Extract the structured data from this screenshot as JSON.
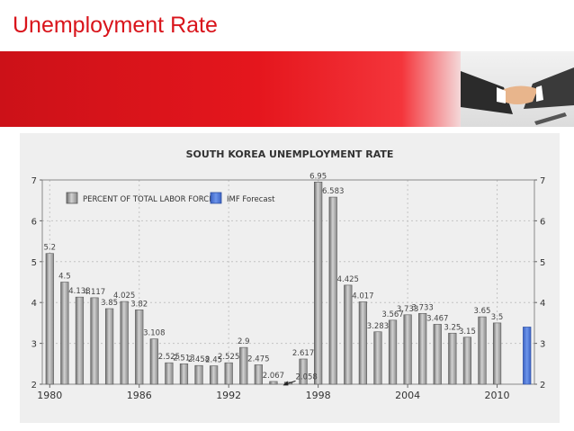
{
  "slide": {
    "title": "Unemployment Rate",
    "accent_color": "#d9141b",
    "banner_image": "handshake-photo"
  },
  "chart_data": {
    "type": "bar",
    "title": "SOUTH KOREA UNEMPLOYMENT RATE",
    "xlabel": "",
    "ylabel": "",
    "ylim": [
      2,
      7
    ],
    "yticks": [
      2,
      3,
      4,
      5,
      6,
      7
    ],
    "xticks": [
      "1980",
      "1986",
      "1992",
      "1998",
      "2004",
      "2010"
    ],
    "grid": true,
    "legend_position": "top-left",
    "categories": [
      "1980",
      "1981",
      "1982",
      "1983",
      "1984",
      "1985",
      "1986",
      "1987",
      "1988",
      "1989",
      "1990",
      "1991",
      "1992",
      "1993",
      "1994",
      "1995",
      "1996",
      "1997",
      "1998",
      "1999",
      "2000",
      "2001",
      "2002",
      "2003",
      "2004",
      "2005",
      "2006",
      "2007",
      "2008",
      "2009",
      "2010",
      "2011",
      "2012"
    ],
    "series": [
      {
        "name": "PERCENT OF TOTAL LABOR FORCE",
        "color": "#9a9a9a",
        "values": [
          5.2,
          4.5,
          4.133,
          4.117,
          3.85,
          4.025,
          3.82,
          3.108,
          2.525,
          2.5,
          2.458,
          2.45,
          2.525,
          2.9,
          2.475,
          2.067,
          2.05,
          2.617,
          6.95,
          6.58,
          4.425,
          4.017,
          3.283,
          3.567,
          3.7,
          3.733,
          3.467,
          3.25,
          3.15,
          3.65,
          3.5,
          null,
          null
        ]
      },
      {
        "name": "IMF Forecast",
        "color": "#4f7ddb",
        "values": [
          null,
          null,
          null,
          null,
          null,
          null,
          null,
          null,
          null,
          null,
          null,
          null,
          null,
          null,
          null,
          null,
          null,
          null,
          null,
          null,
          null,
          null,
          null,
          null,
          null,
          null,
          null,
          null,
          null,
          null,
          null,
          null,
          3.4
        ]
      }
    ],
    "data_labels": [
      "5.2",
      "4.5",
      "4.133",
      "4.117",
      "3.85",
      "4.025",
      "3.82",
      "3.108",
      "2.525",
      "2.513",
      "2.458",
      "2.45",
      "2.525",
      "2.9",
      "2.475",
      "2.067",
      "",
      "2.617",
      "6.95",
      "6.583",
      "4.425",
      "4.017",
      "3.283",
      "3.567",
      "3.733",
      "3.733",
      "3.467",
      "3.25",
      "3.15",
      "3.65",
      "3.5",
      "",
      ""
    ],
    "annotation": "2.058"
  }
}
